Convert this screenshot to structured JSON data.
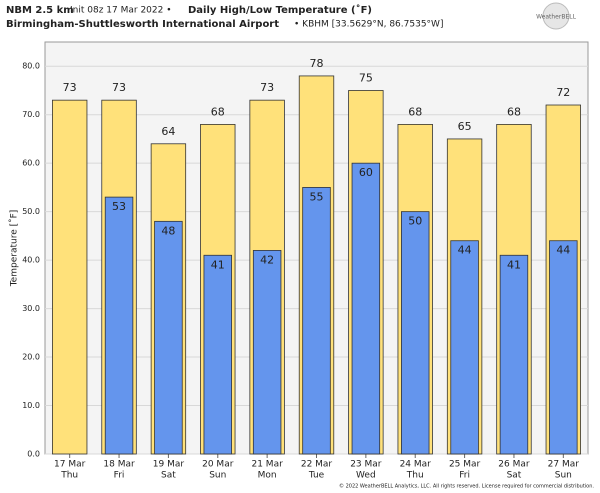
{
  "chart_data": {
    "type": "bar",
    "model": "NBM 2.5 km",
    "init": "Init 08z 17 Mar 2022 •",
    "title": "Daily High/Low Temperature (˚F)",
    "location": "Birmingham-Shuttlesworth International Airport",
    "station": "• KBHM [33.5629°N, 86.7535°W]",
    "logo": "WeatherBELL",
    "ylabel": "Temperature [˚F]",
    "copyright": "© 2022 WeatherBELL Analytics, LLC. All rights reserved. License required for commercial distribution.",
    "categories": [
      [
        "17 Mar",
        "Thu"
      ],
      [
        "18 Mar",
        "Fri"
      ],
      [
        "19 Mar",
        "Sat"
      ],
      [
        "20 Mar",
        "Sun"
      ],
      [
        "21 Mar",
        "Mon"
      ],
      [
        "22 Mar",
        "Tue"
      ],
      [
        "23 Mar",
        "Wed"
      ],
      [
        "24 Mar",
        "Thu"
      ],
      [
        "25 Mar",
        "Fri"
      ],
      [
        "26 Mar",
        "Sat"
      ],
      [
        "27 Mar",
        "Sun"
      ]
    ],
    "series": [
      {
        "color": "#ffe17a",
        "values": [
          73,
          73,
          64,
          68,
          73,
          78,
          75,
          68,
          65,
          68,
          72
        ]
      },
      {
        "color": "#6495ed",
        "values": [
          null,
          53,
          48,
          41,
          42,
          55,
          60,
          50,
          44,
          41,
          44
        ]
      }
    ],
    "ylim": [
      0,
      85
    ],
    "yticks": [
      {
        "value": 0,
        "label": "0.0"
      },
      {
        "value": 10,
        "label": "10.0"
      },
      {
        "value": 20,
        "label": "20.0"
      },
      {
        "value": 30,
        "label": "30.0"
      },
      {
        "value": 40,
        "label": "40.0"
      },
      {
        "value": 50,
        "label": "50.0"
      },
      {
        "value": 60,
        "label": "60.0"
      },
      {
        "value": 70,
        "label": "70.0"
      },
      {
        "value": 80,
        "label": "80.0"
      }
    ],
    "grid": true
  }
}
